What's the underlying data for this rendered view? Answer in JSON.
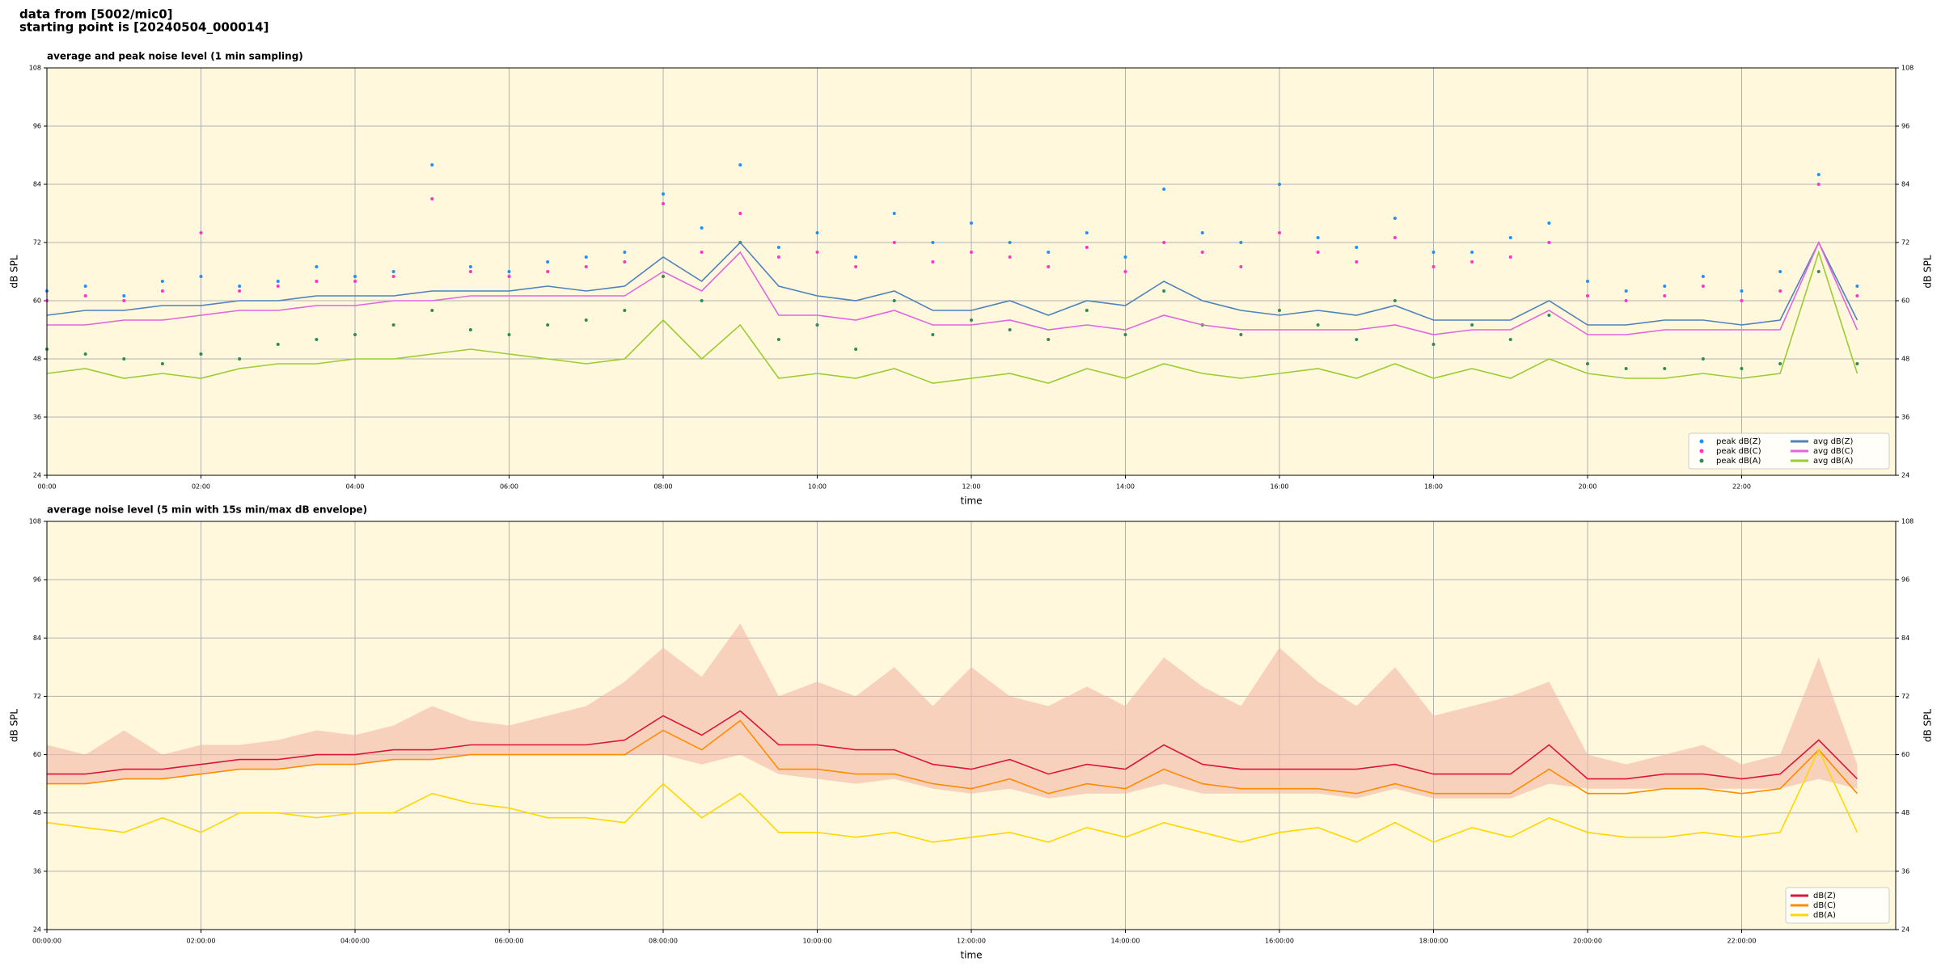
{
  "header": {
    "line1": "data from [5002/mic0]",
    "line2": "starting point is [20240504_000014]"
  },
  "chart_data": [
    {
      "type": "line",
      "title": "average and peak noise level (1 min sampling)",
      "xlabel": "time",
      "ylabel": "dB SPL",
      "grid": true,
      "legend": "lower right",
      "legend_columns": 2,
      "background": "#fff8dc",
      "x": [
        0,
        0.5,
        1,
        1.5,
        2,
        2.5,
        3,
        3.5,
        4,
        4.5,
        5,
        5.5,
        6,
        6.5,
        7,
        7.5,
        8,
        8.5,
        9,
        9.5,
        10,
        10.5,
        11,
        11.5,
        12,
        12.5,
        13,
        13.5,
        14,
        14.5,
        15,
        15.5,
        16,
        16.5,
        17,
        17.5,
        18,
        18.5,
        19,
        19.5,
        20,
        20.5,
        21,
        21.5,
        22,
        22.5,
        23,
        23.5
      ],
      "xlim": [
        0,
        24
      ],
      "xticks": [
        {
          "value": 0,
          "label": "00:00"
        },
        {
          "value": 2,
          "label": "02:00"
        },
        {
          "value": 4,
          "label": "04:00"
        },
        {
          "value": 6,
          "label": "06:00"
        },
        {
          "value": 8,
          "label": "08:00"
        },
        {
          "value": 10,
          "label": "10:00"
        },
        {
          "value": 12,
          "label": "12:00"
        },
        {
          "value": 14,
          "label": "14:00"
        },
        {
          "value": 16,
          "label": "16:00"
        },
        {
          "value": 18,
          "label": "18:00"
        },
        {
          "value": 20,
          "label": "20:00"
        },
        {
          "value": 22,
          "label": "22:00"
        }
      ],
      "ylim": [
        24,
        108
      ],
      "yticks": [
        24,
        36,
        48,
        60,
        72,
        84,
        96,
        108
      ],
      "series": [
        {
          "name": "peak dB(Z)",
          "style": "points",
          "color": "#1e90ff",
          "values": [
            62,
            63,
            61,
            64,
            65,
            63,
            64,
            67,
            65,
            66,
            88,
            67,
            66,
            68,
            69,
            70,
            82,
            75,
            88,
            71,
            74,
            69,
            78,
            72,
            76,
            72,
            70,
            74,
            69,
            83,
            74,
            72,
            84,
            73,
            71,
            77,
            70,
            70,
            73,
            76,
            64,
            62,
            63,
            65,
            62,
            66,
            86,
            63
          ]
        },
        {
          "name": "peak dB(C)",
          "style": "points",
          "color": "#ff33cc",
          "values": [
            60,
            61,
            60,
            62,
            74,
            62,
            63,
            64,
            64,
            65,
            81,
            66,
            65,
            66,
            67,
            68,
            80,
            70,
            78,
            69,
            70,
            67,
            72,
            68,
            70,
            69,
            67,
            71,
            66,
            72,
            70,
            67,
            74,
            70,
            68,
            73,
            67,
            68,
            69,
            72,
            61,
            60,
            61,
            63,
            60,
            62,
            84,
            61
          ]
        },
        {
          "name": "peak dB(A)",
          "style": "points",
          "color": "#2e8b57",
          "values": [
            50,
            49,
            48,
            47,
            49,
            48,
            51,
            52,
            53,
            55,
            58,
            54,
            53,
            55,
            56,
            58,
            65,
            60,
            72,
            52,
            55,
            50,
            60,
            53,
            56,
            54,
            52,
            58,
            53,
            62,
            55,
            53,
            58,
            55,
            52,
            60,
            51,
            55,
            52,
            57,
            47,
            46,
            46,
            48,
            46,
            47,
            66,
            47
          ]
        },
        {
          "name": "avg dB(Z)",
          "style": "line",
          "color": "#4f81bd",
          "values": [
            57,
            58,
            58,
            59,
            59,
            60,
            60,
            61,
            61,
            61,
            62,
            62,
            62,
            63,
            62,
            63,
            69,
            64,
            72,
            63,
            61,
            60,
            62,
            58,
            58,
            60,
            57,
            60,
            59,
            64,
            60,
            58,
            57,
            58,
            57,
            59,
            56,
            56,
            56,
            60,
            55,
            55,
            56,
            56,
            55,
            56,
            72,
            56
          ]
        },
        {
          "name": "avg dB(C)",
          "style": "line",
          "color": "#e066e0",
          "values": [
            55,
            55,
            56,
            56,
            57,
            58,
            58,
            59,
            59,
            60,
            60,
            61,
            61,
            61,
            61,
            61,
            66,
            62,
            70,
            57,
            57,
            56,
            58,
            55,
            55,
            56,
            54,
            55,
            54,
            57,
            55,
            54,
            54,
            54,
            54,
            55,
            53,
            54,
            54,
            58,
            53,
            53,
            54,
            54,
            54,
            54,
            72,
            54
          ]
        },
        {
          "name": "avg dB(A)",
          "style": "line",
          "color": "#9acd32",
          "values": [
            45,
            46,
            44,
            45,
            44,
            46,
            47,
            47,
            48,
            48,
            49,
            50,
            49,
            48,
            47,
            48,
            56,
            48,
            55,
            44,
            45,
            44,
            46,
            43,
            44,
            45,
            43,
            46,
            44,
            47,
            45,
            44,
            45,
            46,
            44,
            47,
            44,
            46,
            44,
            48,
            45,
            44,
            44,
            45,
            44,
            45,
            70,
            45
          ]
        }
      ]
    },
    {
      "type": "line",
      "title": "average noise level (5 min with 15s min/max dB envelope)",
      "xlabel": "time",
      "ylabel": "dB SPL",
      "grid": true,
      "legend": "lower right",
      "legend_columns": 1,
      "background": "#fff8dc",
      "x": [
        0,
        0.5,
        1,
        1.5,
        2,
        2.5,
        3,
        3.5,
        4,
        4.5,
        5,
        5.5,
        6,
        6.5,
        7,
        7.5,
        8,
        8.5,
        9,
        9.5,
        10,
        10.5,
        11,
        11.5,
        12,
        12.5,
        13,
        13.5,
        14,
        14.5,
        15,
        15.5,
        16,
        16.5,
        17,
        17.5,
        18,
        18.5,
        19,
        19.5,
        20,
        20.5,
        21,
        21.5,
        22,
        22.5,
        23,
        23.5
      ],
      "xlim": [
        0,
        24
      ],
      "xticks": [
        {
          "value": 0,
          "label": "00:00:00"
        },
        {
          "value": 2,
          "label": "02:00:00"
        },
        {
          "value": 4,
          "label": "04:00:00"
        },
        {
          "value": 6,
          "label": "06:00:00"
        },
        {
          "value": 8,
          "label": "08:00:00"
        },
        {
          "value": 10,
          "label": "10:00:00"
        },
        {
          "value": 12,
          "label": "12:00:00"
        },
        {
          "value": 14,
          "label": "14:00:00"
        },
        {
          "value": 16,
          "label": "16:00:00"
        },
        {
          "value": 18,
          "label": "18:00:00"
        },
        {
          "value": 20,
          "label": "20:00:00"
        },
        {
          "value": 22,
          "label": "22:00:00"
        }
      ],
      "ylim": [
        24,
        108
      ],
      "yticks": [
        24,
        36,
        48,
        60,
        72,
        84,
        96,
        108
      ],
      "envelope": {
        "color": "#f4b8a8",
        "lower": [
          54,
          54,
          55,
          55,
          56,
          57,
          57,
          58,
          58,
          59,
          59,
          60,
          60,
          60,
          60,
          60,
          60,
          58,
          60,
          56,
          55,
          54,
          55,
          53,
          52,
          53,
          51,
          52,
          52,
          54,
          52,
          52,
          52,
          52,
          51,
          53,
          51,
          51,
          51,
          54,
          53,
          53,
          53,
          53,
          53,
          53,
          55,
          53
        ],
        "upper": [
          62,
          60,
          65,
          60,
          62,
          62,
          63,
          65,
          64,
          66,
          70,
          67,
          66,
          68,
          70,
          75,
          82,
          76,
          87,
          72,
          75,
          72,
          78,
          70,
          78,
          72,
          70,
          74,
          70,
          80,
          74,
          70,
          82,
          75,
          70,
          78,
          68,
          70,
          72,
          75,
          60,
          58,
          60,
          62,
          58,
          60,
          80,
          58
        ]
      },
      "series": [
        {
          "name": "dB(Z)",
          "style": "line",
          "color": "#dc143c",
          "values": [
            56,
            56,
            57,
            57,
            58,
            59,
            59,
            60,
            60,
            61,
            61,
            62,
            62,
            62,
            62,
            63,
            68,
            64,
            69,
            62,
            62,
            61,
            61,
            58,
            57,
            59,
            56,
            58,
            57,
            62,
            58,
            57,
            57,
            57,
            57,
            58,
            56,
            56,
            56,
            62,
            55,
            55,
            56,
            56,
            55,
            56,
            63,
            55
          ]
        },
        {
          "name": "dB(C)",
          "style": "line",
          "color": "#ff8c00",
          "values": [
            54,
            54,
            55,
            55,
            56,
            57,
            57,
            58,
            58,
            59,
            59,
            60,
            60,
            60,
            60,
            60,
            65,
            61,
            67,
            57,
            57,
            56,
            56,
            54,
            53,
            55,
            52,
            54,
            53,
            57,
            54,
            53,
            53,
            53,
            52,
            54,
            52,
            52,
            52,
            57,
            52,
            52,
            53,
            53,
            52,
            53,
            61,
            52
          ]
        },
        {
          "name": "dB(A)",
          "style": "line",
          "color": "#ffd700",
          "values": [
            46,
            45,
            44,
            47,
            44,
            48,
            48,
            47,
            48,
            48,
            52,
            50,
            49,
            47,
            47,
            46,
            54,
            47,
            52,
            44,
            44,
            43,
            44,
            42,
            43,
            44,
            42,
            45,
            43,
            46,
            44,
            42,
            44,
            45,
            42,
            46,
            42,
            45,
            43,
            47,
            44,
            43,
            43,
            44,
            43,
            44,
            61,
            44
          ]
        }
      ]
    }
  ]
}
